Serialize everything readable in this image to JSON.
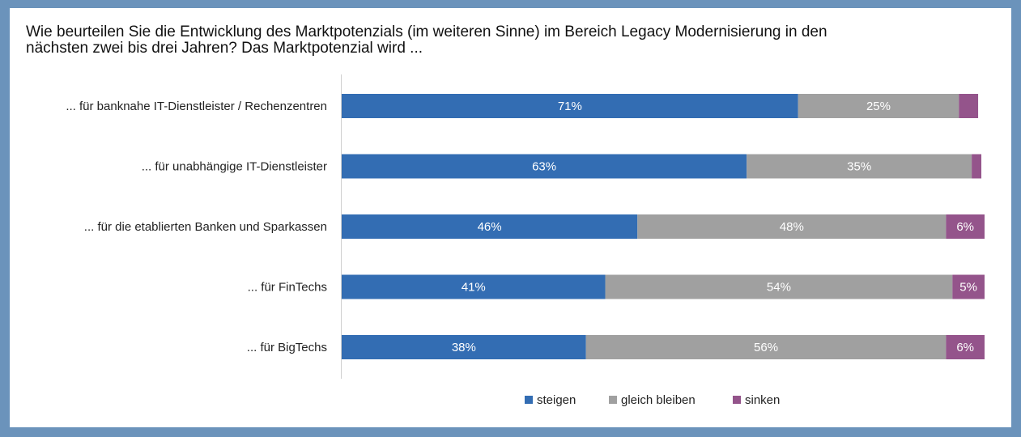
{
  "chart_data": {
    "type": "bar",
    "orientation": "horizontal",
    "stacked": true,
    "title_lines": [
      "Wie beurteilen Sie die Entwicklung des Marktpotenzials (im weiteren Sinne) im Bereich  Legacy Modernisierung in den",
      "nächsten zwei bis drei Jahren? Das Marktpotenzial wird ..."
    ],
    "categories": [
      "... für banknahe IT-Dienstleister / Rechenzentren",
      "... für unabhängige IT-Dienstleister",
      "... für die etablierten Banken und Sparkassen",
      "... für FinTechs",
      "... für BigTechs"
    ],
    "series": [
      {
        "name": "steigen",
        "color": "#336db3",
        "values": [
          71,
          63,
          46,
          41,
          38
        ],
        "labels": [
          "71%",
          "63%",
          "46%",
          "41%",
          "38%"
        ]
      },
      {
        "name": "gleich bleiben",
        "color": "#a0a0a0",
        "values": [
          25,
          35,
          48,
          54,
          56
        ],
        "labels": [
          "25%",
          "35%",
          "48%",
          "54%",
          "56%"
        ]
      },
      {
        "name": "sinken",
        "color": "#94548b",
        "values": [
          3,
          1.5,
          6,
          5,
          6
        ],
        "labels": [
          "",
          "",
          "6%",
          "5%",
          "6%"
        ]
      }
    ],
    "xlim": [
      0,
      100
    ],
    "grid": false,
    "legend_position": "bottom"
  }
}
